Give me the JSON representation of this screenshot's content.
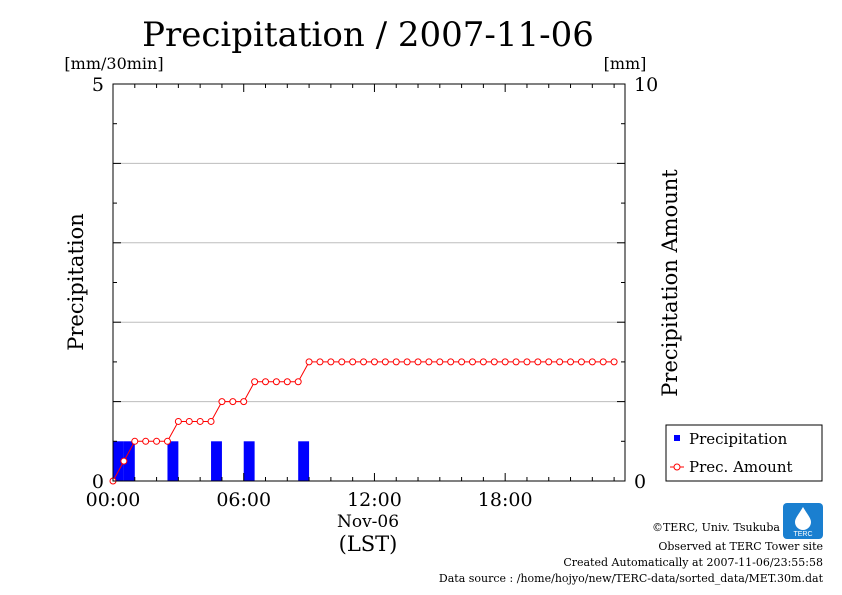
{
  "chart_data": {
    "type": "bar",
    "title": "Precipitation / 2007-11-06",
    "left_unit": "[mm/30min]",
    "right_unit": "[mm]",
    "ylabel_left": "Precipitation",
    "ylabel_right": "Precipitation Amount",
    "ylim_left": [
      0,
      5
    ],
    "ylim_right": [
      0,
      10
    ],
    "left_ticks": [
      {
        "value": 0,
        "label": "0"
      },
      {
        "value": 5,
        "label": "5"
      }
    ],
    "right_ticks": [
      {
        "value": 0,
        "label": "0"
      },
      {
        "value": 10,
        "label": "10"
      }
    ],
    "xlim_hours": [
      0,
      23.5
    ],
    "x_ticks": [
      {
        "hour": 0,
        "label": "00:00"
      },
      {
        "hour": 6,
        "label": "06:00"
      },
      {
        "hour": 12,
        "label": "12:00"
      },
      {
        "hour": 18,
        "label": "18:00"
      }
    ],
    "x_date_label": "Nov-06",
    "x_axis_label": "(LST)",
    "grid": true,
    "legend_position": "right-bottom",
    "series": [
      {
        "name": "Precipitation",
        "type": "bar",
        "axis": "left",
        "color": "#0000ff",
        "x_hours": [
          0.0,
          0.5,
          2.5,
          4.5,
          6.0,
          8.5
        ],
        "values": [
          0.5,
          0.5,
          0.5,
          0.5,
          0.5,
          0.5
        ]
      },
      {
        "name": "Prec. Amount",
        "type": "line",
        "axis": "right",
        "color": "#ff0000",
        "x_hours": [
          0,
          0.5,
          1,
          1.5,
          2,
          2.5,
          3,
          3.5,
          4,
          4.5,
          5,
          5.5,
          6,
          6.5,
          7,
          7.5,
          8,
          8.5,
          9,
          9.5,
          10,
          10.5,
          11,
          11.5,
          12,
          12.5,
          13,
          13.5,
          14,
          14.5,
          15,
          15.5,
          16,
          16.5,
          17,
          17.5,
          18,
          18.5,
          19,
          19.5,
          20,
          20.5,
          21,
          21.5,
          22,
          22.5,
          23
        ],
        "values": [
          0,
          0.5,
          1,
          1,
          1,
          1,
          1.5,
          1.5,
          1.5,
          1.5,
          2,
          2,
          2,
          2.5,
          2.5,
          2.5,
          2.5,
          2.5,
          3,
          3,
          3,
          3,
          3,
          3,
          3,
          3,
          3,
          3,
          3,
          3,
          3,
          3,
          3,
          3,
          3,
          3,
          3,
          3,
          3,
          3,
          3,
          3,
          3,
          3,
          3,
          3,
          3
        ]
      }
    ]
  },
  "footer": {
    "copyright": "©TERC, Univ. Tsukuba",
    "observed": "Observed at TERC Tower site",
    "created": "Created Automatically at 2007-11-06/23:55:58",
    "source": "Data source : /home/hojyo/new/TERC-data/sorted_data/MET.30m.dat",
    "logo_text": "TERC"
  }
}
